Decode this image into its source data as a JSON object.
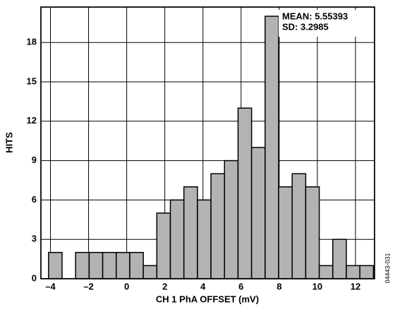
{
  "chart_data": {
    "type": "histogram",
    "xlabel": "CH 1 PhA OFFSET (mV)",
    "ylabel": "HITS",
    "annotations": [
      "MEAN: 5.55393",
      "SD: 3.2985"
    ],
    "side_note": "04443-031",
    "bins": [
      -4.1,
      -3.39,
      -2.68,
      -1.97,
      -1.26,
      -0.55,
      0.16,
      0.87,
      1.58,
      2.29,
      3.0,
      3.71,
      4.42,
      5.13,
      5.84,
      6.55,
      7.26,
      7.97,
      8.68,
      9.39,
      10.1,
      10.81,
      11.52,
      12.23,
      12.94
    ],
    "values": [
      2,
      0,
      2,
      2,
      2,
      2,
      2,
      1,
      5,
      6,
      7,
      6,
      8,
      9,
      13,
      10,
      20,
      7,
      8,
      7,
      1,
      3,
      1,
      1
    ],
    "color": "#b3b3b3",
    "xlim": [
      -4.5,
      13
    ],
    "ylim": [
      0,
      20.7
    ],
    "xticks": [
      {
        "value": -4,
        "label": "–4"
      },
      {
        "value": -2,
        "label": "–2"
      },
      0,
      2,
      4,
      6,
      8,
      10,
      12
    ],
    "yticks": [
      0,
      3,
      6,
      9,
      12,
      15,
      18
    ],
    "grid": true
  }
}
